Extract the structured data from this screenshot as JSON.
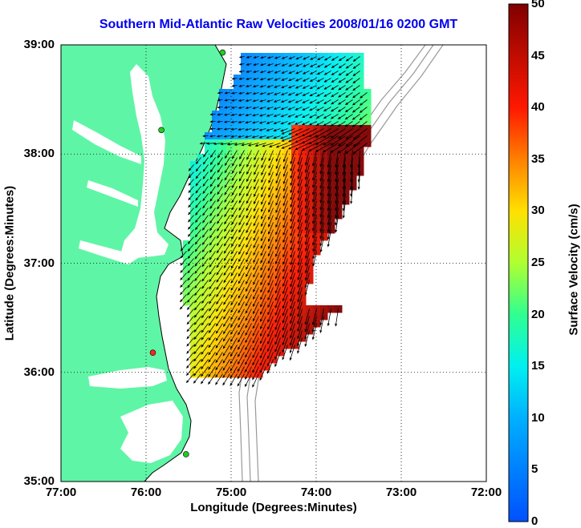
{
  "title": "Southern Mid-Atlantic Raw Velocities 2008/01/16 0200 GMT",
  "x_axis": {
    "label": "Longitude (Degrees:Minutes)",
    "ticks": [
      "77:00",
      "76:00",
      "75:00",
      "74:00",
      "73:00",
      "72:00"
    ]
  },
  "y_axis": {
    "label": "Latitude (Degrees:Minutes)",
    "ticks": [
      "39:00",
      "38:00",
      "37:00",
      "36:00",
      "35:00"
    ]
  },
  "colorbar": {
    "label": "Surface Velocity (cm/s)",
    "ticks": [
      "50",
      "45",
      "40",
      "35",
      "30",
      "25",
      "20",
      "15",
      "10",
      "5",
      "0"
    ],
    "range": [
      0,
      50
    ],
    "colormap": "jet"
  },
  "colors": {
    "title": "#0000ee",
    "land": "#5ff5a6",
    "coastline": "#000000",
    "bathymetry": "#999999",
    "gridlines": "#000000",
    "station_active": "#22cc22",
    "station_inactive": "#ff2222"
  },
  "map": {
    "lon_range": [
      -77,
      -72
    ],
    "lat_range": [
      35,
      39
    ],
    "grid": true,
    "stations": [
      {
        "lon": -75.1,
        "lat": 38.93,
        "status": "active"
      },
      {
        "lon": -75.82,
        "lat": 38.22,
        "status": "active"
      },
      {
        "lon": -75.92,
        "lat": 36.18,
        "status": "inactive"
      },
      {
        "lon": -75.53,
        "lat": 35.25,
        "status": "active"
      }
    ]
  }
}
